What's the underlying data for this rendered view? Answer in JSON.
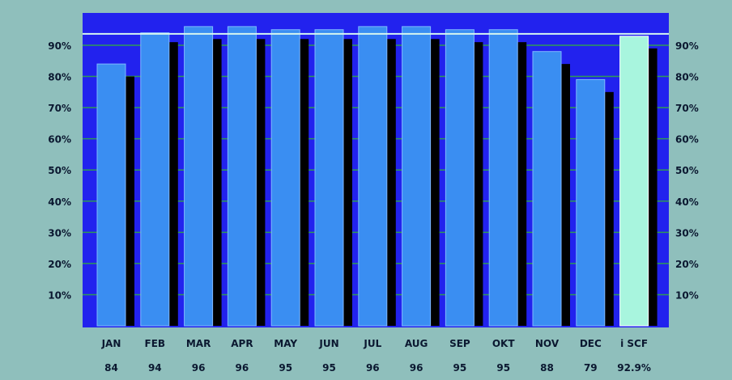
{
  "chart_data": {
    "type": "bar",
    "title": "",
    "xlabel": "",
    "ylabel": "",
    "ylim": [
      0,
      100
    ],
    "yticks": [
      "10%",
      "20%",
      "30%",
      "40%",
      "50%",
      "60%",
      "70%",
      "80%",
      "90%"
    ],
    "grid": true,
    "legend": "none",
    "categories": [
      "JAN",
      "FEB",
      "MAR",
      "APR",
      "MAY",
      "JUN",
      "JUL",
      "AUG",
      "SEP",
      "OKT",
      "NOV",
      "DEC",
      "i SCF"
    ],
    "value_labels": [
      "84",
      "94",
      "96",
      "96",
      "95",
      "95",
      "96",
      "96",
      "95",
      "95",
      "88",
      "79",
      "92.9%"
    ],
    "values": [
      84,
      94,
      96,
      96,
      95,
      95,
      96,
      96,
      95,
      95,
      88,
      79,
      92.9
    ],
    "shadow_values": [
      80,
      91,
      92,
      92,
      92,
      92,
      92,
      92,
      91,
      91,
      84,
      75,
      89
    ],
    "reference_line": 92.9,
    "highlight_index": 12,
    "colors": {
      "background": "#8fbfbc",
      "plot": "#2222ee",
      "bar": "#3a8ef2",
      "bar_highlight": "#a8f5de",
      "shadow": "#000000",
      "grid": "#2e9b55",
      "reference": "#d6f6f0",
      "text": "#0b1830"
    }
  }
}
